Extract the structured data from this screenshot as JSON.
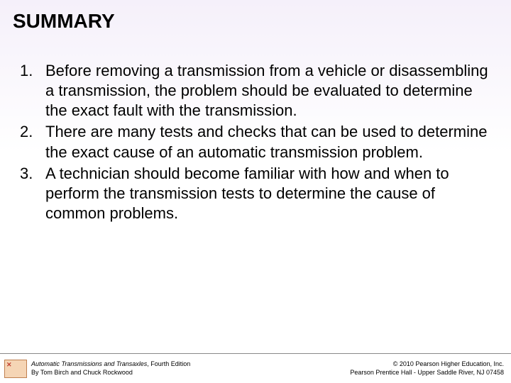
{
  "title": "SUMMARY",
  "items": [
    "Before removing a transmission from a vehicle or disassembling a transmission, the problem should be evaluated to determine the exact fault with the transmission.",
    "There are many tests and checks that can be used to determine the exact cause of an automatic transmission problem.",
    "A technician should become familiar with how and when to perform the transmission tests to determine the cause of common problems."
  ],
  "footer": {
    "left_title_italic": "Automatic Transmissions and Transaxles",
    "left_title_rest": ", Fourth Edition",
    "left_author": "By Tom Birch and Chuck Rockwood",
    "right_line1": "© 2010 Pearson Higher Education, Inc.",
    "right_line2": "Pearson Prentice Hall - Upper Saddle River, NJ 07458"
  },
  "styling": {
    "slide_width": 720,
    "slide_height": 540,
    "background_gradient_top": "#f5f0fa",
    "background_gradient_bottom": "#ffffff",
    "title_fontsize": 28,
    "title_color": "#000000",
    "title_weight": "bold",
    "body_fontsize": 22,
    "body_color": "#000000",
    "body_line_height": 1.28,
    "footer_fontsize": 9,
    "footer_border_color": "#888888",
    "placeholder_bg": "#f5d5b5",
    "placeholder_border": "#c08050",
    "font_family": "Arial"
  }
}
